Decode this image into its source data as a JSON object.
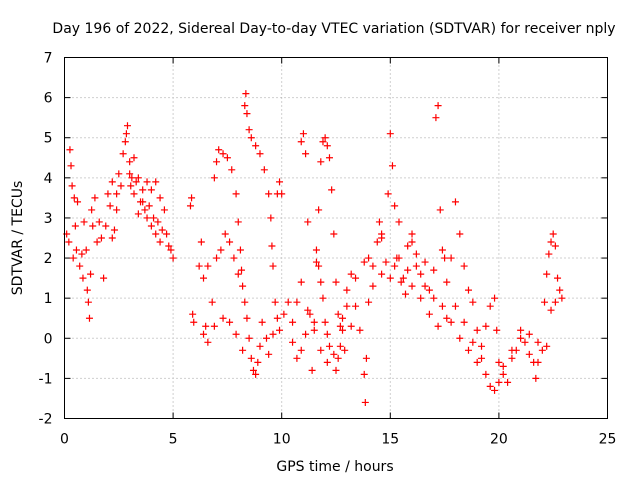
{
  "chart_data": {
    "type": "scatter",
    "title": "Day 196 of 2022, Sidereal Day-to-day VTEC variation (SDTVAR) for receiver nply",
    "xlabel": "GPS time / hours",
    "ylabel": "SDTVAR / TECUs",
    "xlim": [
      0,
      25
    ],
    "ylim": [
      -2,
      7
    ],
    "xticks": [
      0,
      5,
      10,
      15,
      20,
      25
    ],
    "yticks": [
      -2,
      -1,
      0,
      1,
      2,
      3,
      4,
      5,
      6,
      7
    ],
    "grid": true,
    "marker": "+",
    "series": [
      {
        "name": "SDTVAR",
        "color": "#ff0000",
        "points": [
          [
            0.1,
            2.6
          ],
          [
            0.2,
            2.4
          ],
          [
            0.25,
            4.7
          ],
          [
            0.3,
            4.3
          ],
          [
            0.35,
            3.8
          ],
          [
            0.4,
            2.0
          ],
          [
            0.45,
            3.5
          ],
          [
            0.5,
            2.8
          ],
          [
            0.55,
            2.2
          ],
          [
            0.6,
            3.4
          ],
          [
            0.7,
            1.8
          ],
          [
            0.8,
            2.1
          ],
          [
            0.85,
            1.5
          ],
          [
            0.9,
            2.9
          ],
          [
            1.0,
            2.2
          ],
          [
            1.05,
            1.2
          ],
          [
            1.1,
            0.9
          ],
          [
            1.15,
            0.5
          ],
          [
            1.2,
            1.6
          ],
          [
            1.25,
            3.2
          ],
          [
            1.3,
            2.8
          ],
          [
            1.4,
            3.5
          ],
          [
            1.5,
            2.4
          ],
          [
            1.6,
            2.9
          ],
          [
            1.7,
            2.5
          ],
          [
            1.8,
            1.5
          ],
          [
            1.9,
            2.8
          ],
          [
            2.0,
            3.6
          ],
          [
            2.1,
            3.3
          ],
          [
            2.2,
            3.9
          ],
          [
            2.3,
            2.7
          ],
          [
            2.4,
            3.2
          ],
          [
            2.5,
            4.1
          ],
          [
            2.6,
            3.8
          ],
          [
            2.7,
            4.6
          ],
          [
            2.8,
            4.9
          ],
          [
            2.85,
            5.1
          ],
          [
            2.9,
            5.3
          ],
          [
            3.0,
            4.4
          ],
          [
            3.05,
            3.8
          ],
          [
            3.1,
            4.0
          ],
          [
            3.2,
            3.6
          ],
          [
            3.3,
            3.9
          ],
          [
            3.4,
            3.1
          ],
          [
            3.5,
            3.4
          ],
          [
            3.6,
            3.7
          ],
          [
            3.7,
            3.2
          ],
          [
            3.8,
            3.9
          ],
          [
            3.9,
            3.3
          ],
          [
            4.0,
            3.7
          ],
          [
            4.1,
            3.0
          ],
          [
            4.2,
            3.9
          ],
          [
            4.3,
            2.9
          ],
          [
            4.4,
            3.5
          ],
          [
            4.5,
            2.7
          ],
          [
            4.6,
            3.2
          ],
          [
            4.7,
            2.6
          ],
          [
            4.8,
            2.3
          ],
          [
            4.9,
            2.2
          ],
          [
            5.0,
            2.0
          ],
          [
            3.0,
            4.1
          ],
          [
            3.2,
            4.5
          ],
          [
            3.4,
            4.0
          ],
          [
            3.6,
            3.4
          ],
          [
            3.8,
            3.0
          ],
          [
            4.0,
            2.8
          ],
          [
            4.2,
            2.6
          ],
          [
            4.4,
            2.4
          ],
          [
            2.2,
            2.5
          ],
          [
            2.4,
            3.6
          ],
          [
            5.8,
            3.3
          ],
          [
            5.85,
            3.5
          ],
          [
            5.9,
            0.6
          ],
          [
            5.95,
            0.4
          ],
          [
            6.2,
            1.8
          ],
          [
            6.3,
            2.4
          ],
          [
            6.4,
            1.5
          ],
          [
            6.5,
            0.3
          ],
          [
            6.6,
            -0.1
          ],
          [
            6.8,
            0.9
          ],
          [
            6.9,
            4.0
          ],
          [
            7.0,
            4.4
          ],
          [
            7.1,
            4.7
          ],
          [
            7.3,
            4.6
          ],
          [
            7.5,
            4.5
          ],
          [
            7.7,
            4.2
          ],
          [
            7.9,
            3.6
          ],
          [
            8.0,
            2.9
          ],
          [
            8.1,
            2.2
          ],
          [
            8.15,
            1.7
          ],
          [
            8.2,
            1.3
          ],
          [
            8.3,
            0.9
          ],
          [
            8.4,
            0.5
          ],
          [
            8.5,
            0.0
          ],
          [
            8.6,
            -0.5
          ],
          [
            8.7,
            -0.8
          ],
          [
            8.8,
            -0.9
          ],
          [
            8.9,
            -0.6
          ],
          [
            9.0,
            -0.2
          ],
          [
            9.1,
            0.4
          ],
          [
            8.3,
            5.8
          ],
          [
            8.35,
            6.1
          ],
          [
            8.4,
            5.6
          ],
          [
            8.5,
            5.2
          ],
          [
            8.6,
            5.0
          ],
          [
            8.8,
            4.8
          ],
          [
            9.0,
            4.6
          ],
          [
            9.2,
            4.2
          ],
          [
            9.4,
            3.6
          ],
          [
            9.5,
            3.0
          ],
          [
            9.55,
            2.3
          ],
          [
            9.6,
            1.8
          ],
          [
            9.7,
            0.9
          ],
          [
            9.8,
            3.6
          ],
          [
            9.9,
            3.9
          ],
          [
            10.0,
            3.6
          ],
          [
            9.3,
            0.0
          ],
          [
            9.4,
            -0.4
          ],
          [
            9.6,
            0.1
          ],
          [
            9.8,
            0.5
          ],
          [
            10.9,
            4.9
          ],
          [
            11.0,
            5.1
          ],
          [
            11.1,
            4.6
          ],
          [
            11.2,
            2.9
          ],
          [
            11.3,
            0.6
          ],
          [
            11.4,
            -0.8
          ],
          [
            11.5,
            0.4
          ],
          [
            11.6,
            1.9
          ],
          [
            11.7,
            3.2
          ],
          [
            11.8,
            4.4
          ],
          [
            11.9,
            4.9
          ],
          [
            12.0,
            5.0
          ],
          [
            12.1,
            4.8
          ],
          [
            12.2,
            4.5
          ],
          [
            12.3,
            3.7
          ],
          [
            12.4,
            2.6
          ],
          [
            12.5,
            1.4
          ],
          [
            12.6,
            0.6
          ],
          [
            12.7,
            0.3
          ],
          [
            12.8,
            0.2
          ],
          [
            11.6,
            2.2
          ],
          [
            11.7,
            1.8
          ],
          [
            11.8,
            1.4
          ],
          [
            11.9,
            1.0
          ],
          [
            12.0,
            0.4
          ],
          [
            12.1,
            0.1
          ],
          [
            12.2,
            -0.2
          ],
          [
            12.4,
            -0.4
          ],
          [
            12.6,
            -0.5
          ],
          [
            12.7,
            -0.2
          ],
          [
            12.8,
            0.5
          ],
          [
            13.0,
            1.2
          ],
          [
            13.2,
            1.6
          ],
          [
            13.4,
            0.8
          ],
          [
            13.6,
            0.2
          ],
          [
            13.8,
            -0.9
          ],
          [
            13.85,
            -1.6
          ],
          [
            13.9,
            -0.5
          ],
          [
            14.0,
            0.9
          ],
          [
            14.2,
            1.8
          ],
          [
            14.4,
            2.4
          ],
          [
            14.5,
            2.9
          ],
          [
            14.6,
            2.6
          ],
          [
            14.8,
            1.9
          ],
          [
            14.9,
            3.6
          ],
          [
            15.0,
            5.1
          ],
          [
            15.1,
            4.3
          ],
          [
            15.2,
            3.3
          ],
          [
            15.3,
            2.0
          ],
          [
            15.5,
            1.4
          ],
          [
            15.7,
            1.1
          ],
          [
            15.8,
            1.7
          ],
          [
            16.0,
            2.6
          ],
          [
            16.2,
            2.1
          ],
          [
            16.4,
            1.6
          ],
          [
            16.6,
            1.9
          ],
          [
            16.8,
            1.2
          ],
          [
            17.0,
            1.7
          ],
          [
            17.1,
            5.5
          ],
          [
            17.2,
            5.8
          ],
          [
            17.3,
            3.2
          ],
          [
            17.4,
            2.2
          ],
          [
            17.5,
            2.0
          ],
          [
            17.6,
            1.4
          ],
          [
            17.8,
            2.0
          ],
          [
            18.0,
            3.4
          ],
          [
            18.2,
            2.6
          ],
          [
            18.4,
            1.8
          ],
          [
            18.6,
            1.2
          ],
          [
            18.8,
            0.9
          ],
          [
            19.0,
            0.2
          ],
          [
            19.2,
            -0.2
          ],
          [
            19.4,
            0.3
          ],
          [
            19.6,
            0.8
          ],
          [
            19.8,
            1.0
          ],
          [
            19.9,
            0.2
          ],
          [
            20.0,
            -0.6
          ],
          [
            20.2,
            -0.9
          ],
          [
            20.4,
            -1.1
          ],
          [
            20.6,
            -0.5
          ],
          [
            20.8,
            -0.3
          ],
          [
            21.0,
            0.2
          ],
          [
            21.2,
            -0.1
          ],
          [
            21.4,
            -0.4
          ],
          [
            21.6,
            -0.6
          ],
          [
            21.7,
            -1.0
          ],
          [
            21.8,
            -0.6
          ],
          [
            22.0,
            -0.3
          ],
          [
            22.1,
            0.9
          ],
          [
            22.2,
            1.6
          ],
          [
            22.3,
            2.1
          ],
          [
            22.4,
            2.4
          ],
          [
            22.5,
            2.6
          ],
          [
            22.6,
            2.3
          ],
          [
            22.7,
            1.5
          ],
          [
            22.8,
            1.2
          ],
          [
            22.9,
            1.0
          ],
          [
            22.4,
            0.7
          ],
          [
            22.6,
            0.9
          ],
          [
            22.2,
            -0.2
          ],
          [
            15.0,
            1.5
          ],
          [
            15.4,
            2.0
          ],
          [
            15.8,
            2.3
          ],
          [
            16.2,
            1.8
          ],
          [
            16.6,
            1.3
          ],
          [
            17.0,
            1.0
          ],
          [
            17.4,
            0.8
          ],
          [
            17.8,
            0.4
          ],
          [
            18.2,
            0.0
          ],
          [
            18.6,
            -0.3
          ],
          [
            19.0,
            -0.6
          ],
          [
            19.4,
            -0.9
          ],
          [
            19.6,
            -1.2
          ],
          [
            19.8,
            -1.3
          ],
          [
            20.0,
            -1.1
          ],
          [
            20.2,
            -0.7
          ],
          [
            20.6,
            -0.3
          ],
          [
            21.0,
            0.0
          ],
          [
            21.4,
            0.1
          ],
          [
            21.8,
            -0.1
          ],
          [
            13.0,
            0.8
          ],
          [
            13.4,
            1.5
          ],
          [
            13.8,
            1.9
          ],
          [
            14.2,
            1.3
          ],
          [
            14.6,
            1.6
          ],
          [
            15.2,
            1.8
          ],
          [
            15.6,
            1.5
          ],
          [
            16.0,
            1.3
          ],
          [
            16.4,
            1.0
          ],
          [
            16.8,
            0.6
          ],
          [
            17.2,
            0.3
          ],
          [
            17.6,
            0.5
          ],
          [
            18.0,
            0.8
          ],
          [
            18.4,
            0.4
          ],
          [
            18.8,
            -0.1
          ],
          [
            19.2,
            -0.5
          ],
          [
            14.0,
            2.0
          ],
          [
            14.6,
            2.5
          ],
          [
            15.4,
            2.9
          ],
          [
            16.0,
            2.4
          ],
          [
            10.5,
            0.4
          ],
          [
            10.7,
            0.9
          ],
          [
            10.9,
            1.4
          ],
          [
            11.2,
            0.7
          ],
          [
            11.5,
            0.2
          ],
          [
            11.8,
            -0.3
          ],
          [
            12.1,
            -0.6
          ],
          [
            12.5,
            -0.8
          ],
          [
            12.9,
            -0.3
          ],
          [
            13.2,
            0.3
          ],
          [
            9.9,
            0.2
          ],
          [
            10.1,
            0.6
          ],
          [
            10.3,
            0.9
          ],
          [
            10.5,
            -0.1
          ],
          [
            10.7,
            -0.5
          ],
          [
            10.9,
            -0.3
          ],
          [
            11.1,
            0.1
          ],
          [
            6.4,
            0.1
          ],
          [
            6.9,
            0.3
          ],
          [
            7.3,
            0.5
          ],
          [
            7.6,
            0.4
          ],
          [
            7.9,
            0.1
          ],
          [
            8.2,
            -0.3
          ],
          [
            7.2,
            2.2
          ],
          [
            7.4,
            2.6
          ],
          [
            7.6,
            2.4
          ],
          [
            7.8,
            2.0
          ],
          [
            8.0,
            1.6
          ],
          [
            6.6,
            1.8
          ],
          [
            7.0,
            2.0
          ]
        ]
      }
    ]
  }
}
